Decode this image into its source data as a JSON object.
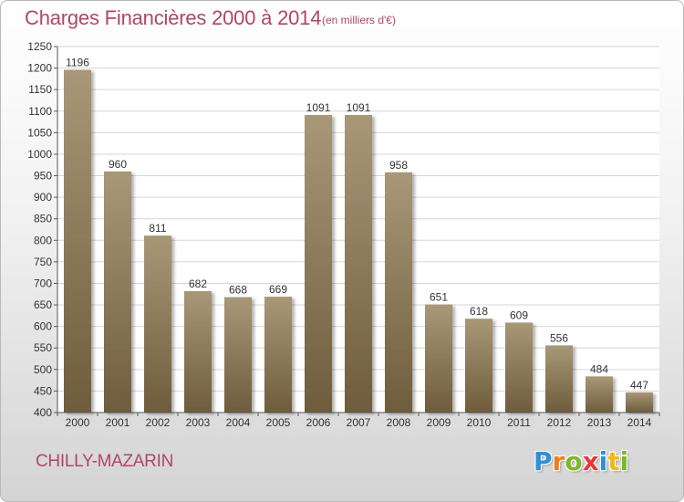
{
  "title": "Charges Financières 2000 à 2014",
  "subtitle": "(en milliers d'€)",
  "city": "CHILLY-MAZARIN",
  "logo": {
    "letters": [
      "P",
      "r",
      "o",
      "x",
      "i",
      "t",
      "i"
    ],
    "colors": [
      "#2e8fd6",
      "#f07d1e",
      "#7ab929",
      "#e33a3a",
      "#2e8fd6",
      "#f2b81b",
      "#7ab929"
    ]
  },
  "colors": {
    "bar_top": "#a89878",
    "bar_bottom": "#6e5c3c",
    "text_accent": "#b0466a"
  },
  "chart_data": {
    "type": "bar",
    "categories": [
      "2000",
      "2001",
      "2002",
      "2003",
      "2004",
      "2005",
      "2006",
      "2007",
      "2008",
      "2009",
      "2010",
      "2011",
      "2012",
      "2013",
      "2014"
    ],
    "values": [
      1196,
      960,
      811,
      682,
      668,
      669,
      1091,
      1091,
      958,
      651,
      618,
      609,
      556,
      484,
      447
    ],
    "ylim": [
      400,
      1250
    ],
    "yticks": [
      400,
      450,
      500,
      550,
      600,
      650,
      700,
      750,
      800,
      850,
      900,
      950,
      1000,
      1050,
      1100,
      1150,
      1200,
      1250
    ],
    "grid": true
  }
}
